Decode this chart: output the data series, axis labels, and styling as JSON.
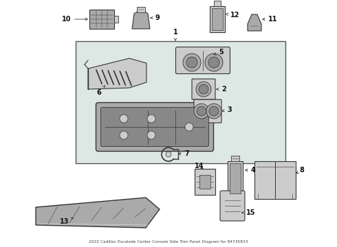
{
  "title": "2022 Cadillac Escalade Center Console Side Trim Panel Diagram for 84735833",
  "bg": "#ffffff",
  "lc": "#333333",
  "box_bg": "#dde8e4",
  "parts_gray": "#aaaaaa",
  "dark_gray": "#888888",
  "light_gray": "#cccccc",
  "label_fs": 7,
  "arrow_lw": 0.6
}
